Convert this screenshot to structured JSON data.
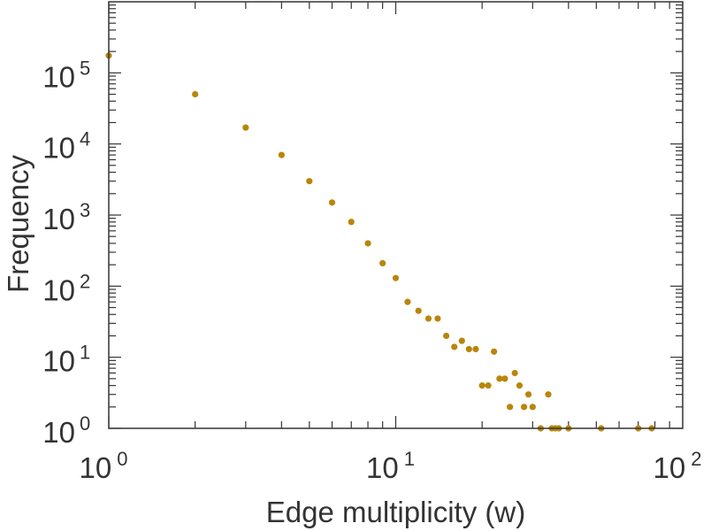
{
  "chart_data": {
    "type": "scatter",
    "title": "",
    "xlabel": "Edge multiplicity (w)",
    "ylabel": "Frequency",
    "xscale": "log",
    "yscale": "log",
    "xlim": [
      1,
      100
    ],
    "ylim": [
      1,
      1000000
    ],
    "grid": false,
    "marker_color": "#b8860b",
    "x_ticks": [
      {
        "value": 1,
        "base": "10",
        "exp": "0"
      },
      {
        "value": 10,
        "base": "10",
        "exp": "1"
      },
      {
        "value": 100,
        "base": "10",
        "exp": "2"
      }
    ],
    "y_ticks": [
      {
        "value": 1,
        "base": "10",
        "exp": "0"
      },
      {
        "value": 10,
        "base": "10",
        "exp": "1"
      },
      {
        "value": 100,
        "base": "10",
        "exp": "2"
      },
      {
        "value": 1000,
        "base": "10",
        "exp": "3"
      },
      {
        "value": 10000,
        "base": "10",
        "exp": "4"
      },
      {
        "value": 100000,
        "base": "10",
        "exp": "5"
      }
    ],
    "points": [
      {
        "x": 1,
        "y": 175000
      },
      {
        "x": 2,
        "y": 50000
      },
      {
        "x": 3,
        "y": 17000
      },
      {
        "x": 4,
        "y": 7000
      },
      {
        "x": 5,
        "y": 3000
      },
      {
        "x": 6,
        "y": 1500
      },
      {
        "x": 7,
        "y": 800
      },
      {
        "x": 8,
        "y": 400
      },
      {
        "x": 9,
        "y": 210
      },
      {
        "x": 10,
        "y": 130
      },
      {
        "x": 11,
        "y": 60
      },
      {
        "x": 12,
        "y": 45
      },
      {
        "x": 13,
        "y": 35
      },
      {
        "x": 14,
        "y": 35
      },
      {
        "x": 15,
        "y": 20
      },
      {
        "x": 16,
        "y": 14
      },
      {
        "x": 17,
        "y": 17
      },
      {
        "x": 18,
        "y": 13
      },
      {
        "x": 19,
        "y": 13
      },
      {
        "x": 20,
        "y": 4
      },
      {
        "x": 21,
        "y": 4
      },
      {
        "x": 22,
        "y": 12
      },
      {
        "x": 23,
        "y": 5
      },
      {
        "x": 24,
        "y": 5
      },
      {
        "x": 25,
        "y": 2
      },
      {
        "x": 26,
        "y": 6
      },
      {
        "x": 27,
        "y": 4
      },
      {
        "x": 28,
        "y": 2
      },
      {
        "x": 29,
        "y": 3
      },
      {
        "x": 30,
        "y": 2
      },
      {
        "x": 32,
        "y": 1
      },
      {
        "x": 34,
        "y": 3
      },
      {
        "x": 35,
        "y": 1
      },
      {
        "x": 36,
        "y": 1
      },
      {
        "x": 37,
        "y": 1
      },
      {
        "x": 40,
        "y": 1
      },
      {
        "x": 52,
        "y": 1
      },
      {
        "x": 70,
        "y": 1
      },
      {
        "x": 78,
        "y": 1
      }
    ]
  }
}
